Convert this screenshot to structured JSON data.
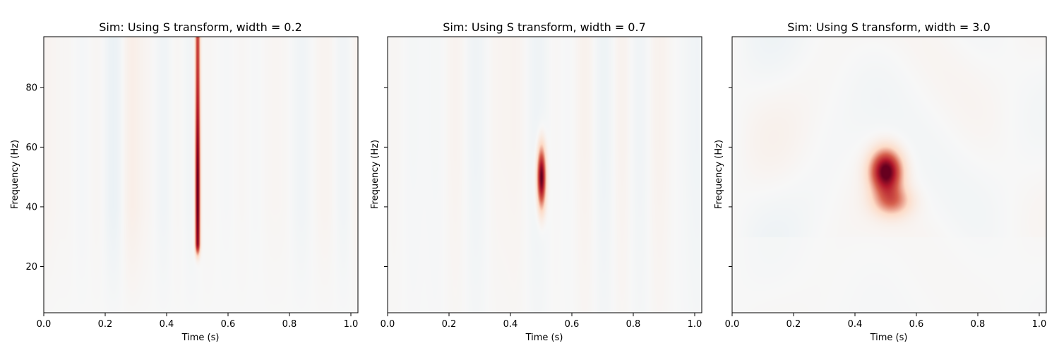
{
  "chart_data": [
    {
      "type": "heatmap",
      "title": "Sim: Using S transform, width = 0.2",
      "xlabel": "Time (s)",
      "ylabel": "Frequency (Hz)",
      "xlim": [
        0.0,
        1.023
      ],
      "ylim": [
        4.5,
        97.0
      ],
      "xticks": [
        "0.0",
        "0.2",
        "0.4",
        "0.6",
        "0.8",
        "1.0"
      ],
      "xtick_values": [
        0.0,
        0.2,
        0.4,
        0.6,
        0.8,
        1.0
      ],
      "yticks": [
        "20",
        "40",
        "60",
        "80"
      ],
      "ytick_values": [
        20,
        40,
        60,
        80
      ],
      "show_ytick_labels": true,
      "colormap": "RdBu_r",
      "peak": {
        "time": 0.5,
        "freq": 45,
        "time_width": 0.008,
        "freq_low": 28,
        "freq_high": 97
      },
      "background_noise": "fine vertical stripes"
    },
    {
      "type": "heatmap",
      "title": "Sim: Using S transform, width = 0.7",
      "xlabel": "Time (s)",
      "ylabel": "Frequency (Hz)",
      "xlim": [
        0.0,
        1.023
      ],
      "ylim": [
        4.5,
        97.0
      ],
      "xticks": [
        "0.0",
        "0.2",
        "0.4",
        "0.6",
        "0.8",
        "1.0"
      ],
      "xtick_values": [
        0.0,
        0.2,
        0.4,
        0.6,
        0.8,
        1.0
      ],
      "yticks": [
        "20",
        "40",
        "60",
        "80"
      ],
      "ytick_values": [
        20,
        40,
        60,
        80
      ],
      "show_ytick_labels": false,
      "colormap": "RdBu_r",
      "peak": {
        "time": 0.5,
        "freq": 50,
        "time_width": 0.014,
        "freq_low": 33,
        "freq_high": 68
      },
      "background_noise": "soft vertical streaks"
    },
    {
      "type": "heatmap",
      "title": "Sim: Using S transform, width = 3.0",
      "xlabel": "Time (s)",
      "ylabel": "Frequency (Hz)",
      "xlim": [
        0.0,
        1.023
      ],
      "ylim": [
        4.5,
        97.0
      ],
      "xticks": [
        "0.0",
        "0.2",
        "0.4",
        "0.6",
        "0.8",
        "1.0"
      ],
      "xtick_values": [
        0.0,
        0.2,
        0.4,
        0.6,
        0.8,
        1.0
      ],
      "yticks": [
        "20",
        "40",
        "60",
        "80"
      ],
      "ytick_values": [
        20,
        40,
        60,
        80
      ],
      "show_ytick_labels": false,
      "colormap": "RdBu_r",
      "peak": {
        "time": 0.5,
        "freq": 50,
        "time_width": 0.05,
        "freq_low": 38,
        "freq_high": 62
      },
      "background_noise": "blobby patches"
    }
  ]
}
